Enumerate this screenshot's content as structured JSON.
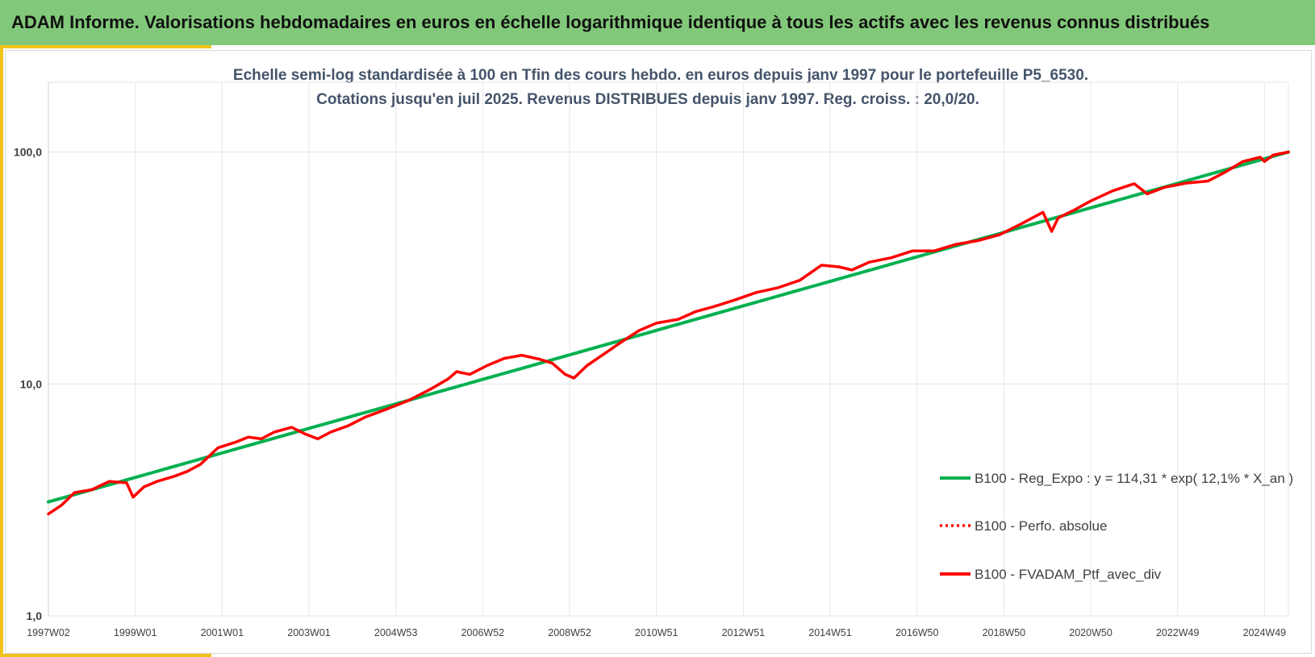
{
  "header": {
    "title": "ADAM Informe. Valorisations hebdomadaires en euros en échelle logarithmique identique à tous les actifs avec les revenus connus distribués"
  },
  "colors": {
    "header_bg": "#82c87a",
    "accent": "#f2c31b",
    "regression": "#00b050",
    "portfolio": "#ff0000",
    "grid": "#e6e6e6"
  },
  "chart_data": {
    "type": "line",
    "subtitle_lines": [
      "Echelle semi-log standardisée à 100 en Tfin des cours hebdo. en euros depuis janv 1997 pour le portefeuille P5_6530.",
      "Cotations jusqu'en juil 2025. Revenus DISTRIBUES depuis janv 1997. Reg. croiss. : 20,0/20."
    ],
    "y_scale": "log",
    "ylim": [
      1,
      200
    ],
    "y_ticks": [
      {
        "value": 1,
        "label": "1,0"
      },
      {
        "value": 10,
        "label": "10,0"
      },
      {
        "value": 100,
        "label": "100,0"
      }
    ],
    "xlim": [
      1997.0,
      2025.55
    ],
    "x_ticks": [
      {
        "value": 1997.0,
        "label": "1997W02"
      },
      {
        "value": 1999.0,
        "label": "1999W01"
      },
      {
        "value": 2001.0,
        "label": "2001W01"
      },
      {
        "value": 2003.0,
        "label": "2003W01"
      },
      {
        "value": 2005.0,
        "label": "2004W53"
      },
      {
        "value": 2007.0,
        "label": "2006W52"
      },
      {
        "value": 2009.0,
        "label": "2008W52"
      },
      {
        "value": 2011.0,
        "label": "2010W51"
      },
      {
        "value": 2013.0,
        "label": "2012W51"
      },
      {
        "value": 2015.0,
        "label": "2014W51"
      },
      {
        "value": 2017.0,
        "label": "2016W50"
      },
      {
        "value": 2019.0,
        "label": "2018W50"
      },
      {
        "value": 2021.0,
        "label": "2020W50"
      },
      {
        "value": 2023.0,
        "label": "2022W49"
      },
      {
        "value": 2025.0,
        "label": "2024W49"
      }
    ],
    "grid": true,
    "legend_position": "bottom-right",
    "series": [
      {
        "name": "B100 - Reg_Expo : y = 114,31 * exp( 12,1% *  X_an )",
        "color": "#00b050",
        "style": "solid",
        "x": [
          1997.0,
          2025.55
        ],
        "y": [
          3.1,
          100.0
        ]
      },
      {
        "name": "B100 - Perfo. absolue",
        "color": "#ff0000",
        "style": "dotted",
        "x": [],
        "y": []
      },
      {
        "name": "B100 - FVADAM_Ptf_avec_div",
        "color": "#ff0000",
        "style": "solid",
        "x": [
          1997.0,
          1997.3,
          1997.6,
          1998.0,
          1998.4,
          1998.8,
          1998.95,
          1999.2,
          1999.5,
          1999.9,
          2000.2,
          2000.5,
          2000.9,
          2001.3,
          2001.6,
          2001.9,
          2002.2,
          2002.6,
          2002.9,
          2003.2,
          2003.5,
          2003.9,
          2004.3,
          2004.8,
          2005.3,
          2005.8,
          2006.2,
          2006.4,
          2006.7,
          2007.1,
          2007.5,
          2007.9,
          2008.3,
          2008.6,
          2008.9,
          2009.1,
          2009.4,
          2009.8,
          2010.2,
          2010.6,
          2011.0,
          2011.5,
          2011.9,
          2012.3,
          2012.8,
          2013.3,
          2013.8,
          2014.3,
          2014.8,
          2015.2,
          2015.5,
          2015.9,
          2016.4,
          2016.9,
          2017.4,
          2017.9,
          2018.4,
          2018.9,
          2019.4,
          2019.9,
          2020.1,
          2020.25,
          2020.6,
          2021.0,
          2021.5,
          2022.0,
          2022.3,
          2022.7,
          2023.2,
          2023.7,
          2024.1,
          2024.5,
          2024.9,
          2025.0,
          2025.2,
          2025.55
        ],
        "y": [
          2.75,
          3.0,
          3.4,
          3.5,
          3.8,
          3.75,
          3.25,
          3.6,
          3.8,
          4.0,
          4.2,
          4.5,
          5.3,
          5.6,
          5.9,
          5.8,
          6.2,
          6.5,
          6.1,
          5.8,
          6.2,
          6.6,
          7.2,
          7.8,
          8.5,
          9.5,
          10.5,
          11.3,
          11.0,
          12.0,
          12.9,
          13.3,
          12.8,
          12.3,
          11.0,
          10.6,
          12.0,
          13.5,
          15.2,
          17.0,
          18.3,
          19.0,
          20.5,
          21.5,
          23.0,
          24.8,
          26.0,
          28.0,
          32.5,
          32.0,
          31.0,
          33.5,
          35.0,
          37.5,
          37.5,
          40.0,
          41.5,
          44.0,
          49.0,
          55.0,
          45.5,
          52.0,
          56.0,
          61.5,
          68.0,
          73.0,
          66.0,
          70.5,
          73.5,
          75.0,
          82.0,
          91.0,
          95.0,
          91.0,
          97.0,
          100.0
        ]
      }
    ]
  }
}
